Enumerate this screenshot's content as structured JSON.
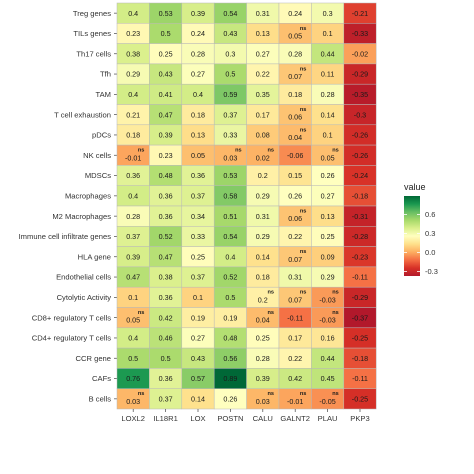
{
  "chart_data": {
    "type": "heatmap",
    "title": "",
    "xlabel": "",
    "ylabel": "",
    "x_categories": [
      "LOXL2",
      "IL18R1",
      "LOX",
      "POSTN",
      "CALU",
      "GALNT2",
      "PLAU",
      "PKP3"
    ],
    "y_categories": [
      "Treg genes",
      "TILs genes",
      "Th17 cells",
      "Tfh",
      "TAM",
      "T cell exhaustion",
      "pDCs",
      "NK  cells",
      "MDSCs",
      "Macrophages",
      "M2 Macrophages",
      "Immune cell infiltrate genes",
      "HLA gene",
      "Endothelial cells",
      "Cytolytic Activity",
      "CD8+ regulatory T cells",
      "CD4+ regulatory T cells",
      "CCR gene",
      "CAFs",
      "B cells"
    ],
    "values": [
      [
        0.4,
        0.53,
        0.39,
        0.54,
        0.31,
        0.24,
        0.3,
        -0.21
      ],
      [
        0.23,
        0.5,
        0.24,
        0.43,
        0.13,
        0.05,
        0.1,
        -0.33
      ],
      [
        0.38,
        0.25,
        0.28,
        0.3,
        0.27,
        0.28,
        0.44,
        -0.02
      ],
      [
        0.29,
        0.43,
        0.27,
        0.5,
        0.22,
        0.07,
        0.11,
        -0.29
      ],
      [
        0.4,
        0.41,
        0.4,
        0.59,
        0.35,
        0.18,
        0.28,
        -0.35
      ],
      [
        0.21,
        0.47,
        0.18,
        0.37,
        0.17,
        0.06,
        0.14,
        -0.3
      ],
      [
        0.18,
        0.39,
        0.13,
        0.33,
        0.08,
        0.04,
        0.1,
        -0.26
      ],
      [
        -0.01,
        0.23,
        0.05,
        0.03,
        0.02,
        -0.06,
        0.05,
        -0.26
      ],
      [
        0.36,
        0.48,
        0.36,
        0.53,
        0.2,
        0.15,
        0.26,
        -0.24
      ],
      [
        0.4,
        0.36,
        0.37,
        0.58,
        0.29,
        0.26,
        0.27,
        -0.18
      ],
      [
        0.28,
        0.36,
        0.34,
        0.51,
        0.31,
        0.06,
        0.13,
        -0.31
      ],
      [
        0.37,
        0.52,
        0.33,
        0.54,
        0.29,
        0.22,
        0.25,
        -0.28
      ],
      [
        0.39,
        0.47,
        0.25,
        0.4,
        0.14,
        0.07,
        0.09,
        -0.23
      ],
      [
        0.47,
        0.38,
        0.37,
        0.52,
        0.18,
        0.31,
        0.29,
        -0.11
      ],
      [
        0.1,
        0.36,
        0.1,
        0.5,
        0.2,
        0.07,
        -0.03,
        -0.29
      ],
      [
        0.05,
        0.42,
        0.19,
        0.19,
        0.04,
        -0.11,
        -0.03,
        -0.37
      ],
      [
        0.4,
        0.46,
        0.27,
        0.48,
        0.25,
        0.17,
        0.16,
        -0.25
      ],
      [
        0.5,
        0.5,
        0.43,
        0.56,
        0.28,
        0.22,
        0.44,
        -0.18
      ],
      [
        0.76,
        0.36,
        0.57,
        0.89,
        0.39,
        0.42,
        0.45,
        -0.11
      ],
      [
        0.03,
        0.37,
        0.14,
        0.26,
        0.03,
        -0.01,
        -0.05,
        -0.25
      ]
    ],
    "labels": [
      [
        "0.4",
        "0.53",
        "0.39",
        "0.54",
        "0.31",
        "0.24",
        "0.3",
        "-0.21"
      ],
      [
        "0.23",
        "0.5",
        "0.24",
        "0.43",
        "0.13",
        "0.05",
        "0.1",
        "-0.33"
      ],
      [
        "0.38",
        "0.25",
        "0.28",
        "0.3",
        "0.27",
        "0.28",
        "0.44",
        "-0.02"
      ],
      [
        "0.29",
        "0.43",
        "0.27",
        "0.5",
        "0.22",
        "0.07",
        "0.11",
        "-0.29"
      ],
      [
        "0.4",
        "0.41",
        "0.4",
        "0.59",
        "0.35",
        "0.18",
        "0.28",
        "-0.35"
      ],
      [
        "0.21",
        "0.47",
        "0.18",
        "0.37",
        "0.17",
        "0.06",
        "0.14",
        "-0.3"
      ],
      [
        "0.18",
        "0.39",
        "0.13",
        "0.33",
        "0.08",
        "0.04",
        "0.1",
        "-0.26"
      ],
      [
        "-0.01",
        "0.23",
        "0.05",
        "0.03",
        "0.02",
        "-0.06",
        "0.05",
        "-0.26"
      ],
      [
        "0.36",
        "0.48",
        "0.36",
        "0.53",
        "0.2",
        "0.15",
        "0.26",
        "-0.24"
      ],
      [
        "0.4",
        "0.36",
        "0.37",
        "0.58",
        "0.29",
        "0.26",
        "0.27",
        "-0.18"
      ],
      [
        "0.28",
        "0.36",
        "0.34",
        "0.51",
        "0.31",
        "0.06",
        "0.13",
        "-0.31"
      ],
      [
        "0.37",
        "0.52",
        "0.33",
        "0.54",
        "0.29",
        "0.22",
        "0.25",
        "-0.28"
      ],
      [
        "0.39",
        "0.47",
        "0.25",
        "0.4",
        "0.14",
        "0.07",
        "0.09",
        "-0.23"
      ],
      [
        "0.47",
        "0.38",
        "0.37",
        "0.52",
        "0.18",
        "0.31",
        "0.29",
        "-0.11"
      ],
      [
        "0.1",
        "0.36",
        "0.1",
        "0.5",
        "0.2",
        "0.07",
        "-0.03",
        "-0.29"
      ],
      [
        "0.05",
        "0.42",
        "0.19",
        "0.19",
        "0.04",
        "-0.11",
        "-0.03",
        "-0.37"
      ],
      [
        "0.4",
        "0.46",
        "0.27",
        "0.48",
        "0.25",
        "0.17",
        "0.16",
        "-0.25"
      ],
      [
        "0.5",
        "0.5",
        "0.43",
        "0.56",
        "0.28",
        "0.22",
        "0.44",
        "-0.18"
      ],
      [
        "0.76",
        "0.36",
        "0.57",
        "0.89",
        "0.39",
        "0.42",
        "0.45",
        "-0.11"
      ],
      [
        "0.03",
        "0.37",
        "0.14",
        "0.26",
        "0.03",
        "-0.01",
        "-0.05",
        "-0.25"
      ]
    ],
    "ns_marks": [
      [
        false,
        false,
        false,
        false,
        false,
        false,
        false,
        false
      ],
      [
        false,
        false,
        false,
        false,
        false,
        true,
        false,
        false
      ],
      [
        false,
        false,
        false,
        false,
        false,
        false,
        false,
        false
      ],
      [
        false,
        false,
        false,
        false,
        false,
        true,
        false,
        false
      ],
      [
        false,
        false,
        false,
        false,
        false,
        false,
        false,
        false
      ],
      [
        false,
        false,
        false,
        false,
        false,
        true,
        false,
        false
      ],
      [
        false,
        false,
        false,
        false,
        false,
        true,
        false,
        false
      ],
      [
        true,
        false,
        false,
        true,
        true,
        false,
        true,
        false
      ],
      [
        false,
        false,
        false,
        false,
        false,
        false,
        false,
        false
      ],
      [
        false,
        false,
        false,
        false,
        false,
        false,
        false,
        false
      ],
      [
        false,
        false,
        false,
        false,
        false,
        true,
        false,
        false
      ],
      [
        false,
        false,
        false,
        false,
        false,
        false,
        false,
        false
      ],
      [
        false,
        false,
        false,
        false,
        false,
        true,
        false,
        false
      ],
      [
        false,
        false,
        false,
        false,
        false,
        false,
        false,
        false
      ],
      [
        false,
        false,
        false,
        false,
        true,
        true,
        true,
        false
      ],
      [
        true,
        false,
        false,
        false,
        true,
        false,
        true,
        false
      ],
      [
        false,
        false,
        false,
        false,
        false,
        false,
        false,
        false
      ],
      [
        false,
        false,
        false,
        false,
        false,
        false,
        false,
        false
      ],
      [
        false,
        false,
        false,
        false,
        false,
        false,
        false,
        false
      ],
      [
        true,
        false,
        false,
        false,
        true,
        true,
        true,
        false
      ]
    ],
    "ns_text": "ns",
    "legend": {
      "title": "value",
      "ticks": [
        0.6,
        0.3,
        0.0,
        -0.3
      ],
      "tick_labels": [
        "0.6",
        "0.3",
        "0.0",
        "-0.3"
      ],
      "placement": "right"
    },
    "color_scale": {
      "min": -0.37,
      "max": 0.89,
      "colors": [
        "#b2182b",
        "#d73027",
        "#f46d43",
        "#fdae61",
        "#fee08b",
        "#ffffbf",
        "#d9ef8b",
        "#a6d96a",
        "#66bd63",
        "#1a9850",
        "#006837"
      ],
      "gridline_color": "#b8b8b8",
      "grid": true
    }
  }
}
